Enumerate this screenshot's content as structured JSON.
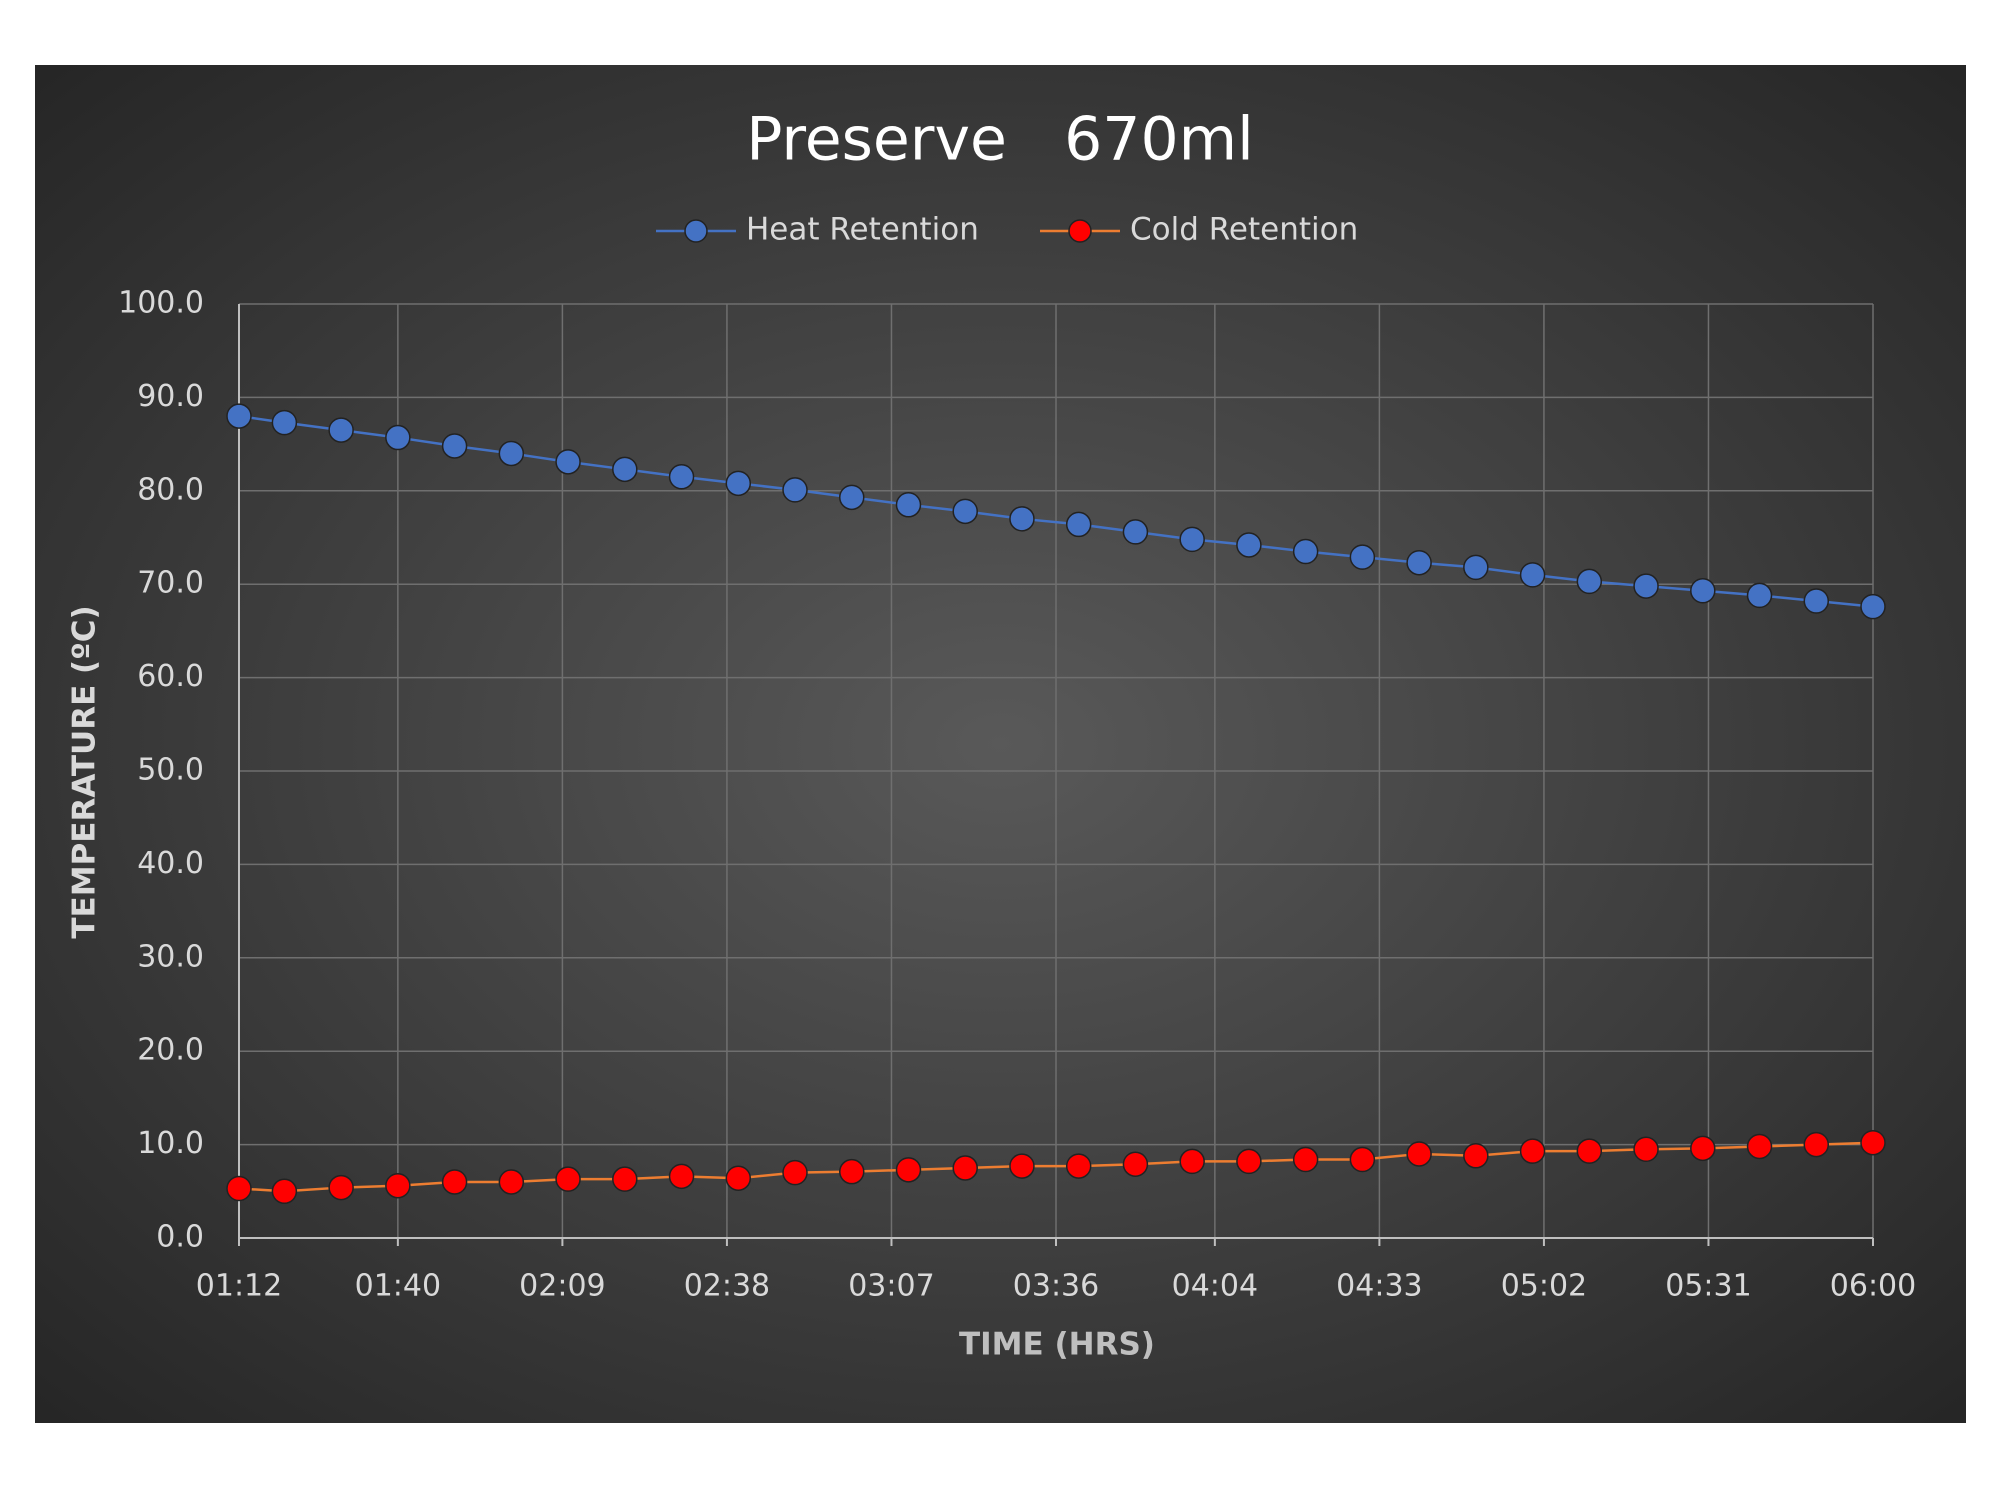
{
  "chart_data": {
    "type": "line",
    "title": "Preserve   670ml",
    "x_label": "TIME (HRS)",
    "y_label": "TEMPERATURE (ºC)",
    "x": [
      "01:12",
      "01:20",
      "01:30",
      "01:40",
      "01:50",
      "02:00",
      "02:10",
      "02:20",
      "02:30",
      "02:40",
      "02:50",
      "03:00",
      "03:10",
      "03:20",
      "03:30",
      "03:40",
      "03:50",
      "04:00",
      "04:10",
      "04:20",
      "04:30",
      "04:40",
      "04:50",
      "05:00",
      "05:10",
      "05:20",
      "05:30",
      "05:40",
      "05:50",
      "06:00"
    ],
    "series": [
      {
        "name": "Heat Retention",
        "color": "#4472c4",
        "marker_color": "#4472c4",
        "values": [
          88.0,
          87.3,
          86.5,
          85.7,
          84.8,
          84.0,
          83.1,
          82.3,
          81.5,
          80.8,
          80.1,
          79.3,
          78.5,
          77.8,
          77.0,
          76.4,
          75.6,
          74.8,
          74.2,
          73.5,
          72.9,
          72.3,
          71.8,
          71.0,
          70.3,
          69.8,
          69.3,
          68.8,
          68.2,
          67.6
        ]
      },
      {
        "name": "Cold Retention",
        "color": "#ed7d31",
        "marker_color": "#ff0000",
        "values": [
          5.3,
          5.0,
          5.4,
          5.6,
          6.0,
          6.0,
          6.3,
          6.3,
          6.6,
          6.4,
          7.0,
          7.1,
          7.3,
          7.5,
          7.7,
          7.7,
          7.9,
          8.2,
          8.2,
          8.4,
          8.4,
          9.0,
          8.8,
          9.3,
          9.3,
          9.5,
          9.6,
          9.8,
          10.0,
          10.2
        ]
      }
    ],
    "xlim": [
      "01:12",
      "06:00"
    ],
    "xticks": [
      "01:12",
      "01:40",
      "02:09",
      "02:38",
      "03:07",
      "03:36",
      "04:04",
      "04:33",
      "05:02",
      "05:31",
      "06:00"
    ],
    "ylim": [
      0,
      100
    ],
    "yticks": [
      {
        "value": 0,
        "label": "0.0"
      },
      {
        "value": 10,
        "label": "10.0"
      },
      {
        "value": 20,
        "label": "20.0"
      },
      {
        "value": 30,
        "label": "30.0"
      },
      {
        "value": 40,
        "label": "40.0"
      },
      {
        "value": 50,
        "label": "50.0"
      },
      {
        "value": 60,
        "label": "60.0"
      },
      {
        "value": 70,
        "label": "70.0"
      },
      {
        "value": 80,
        "label": "80.0"
      },
      {
        "value": 90,
        "label": "90.0"
      },
      {
        "value": 100,
        "label": "100.0"
      }
    ],
    "grid": true,
    "legend": "top"
  }
}
